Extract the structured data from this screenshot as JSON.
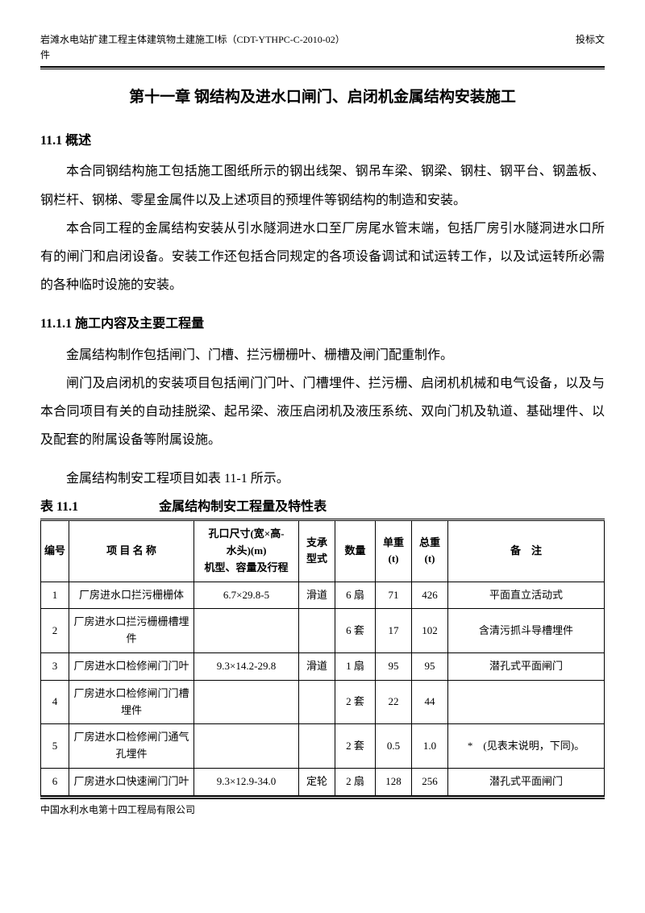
{
  "header": {
    "left_line1": "岩滩水电站扩建工程主体建筑物土建施工Ⅰ标（CDT-YTHPC-C-2010-02）",
    "left_line2": "件",
    "right": "投标文"
  },
  "chapter_title": "第十一章 钢结构及进水口闸门、启闭机金属结构安装施工",
  "section1": {
    "heading": "11.1 概述",
    "para1": "本合同钢结构施工包括施工图纸所示的钢出线架、钢吊车梁、钢梁、钢柱、钢平台、钢盖板、钢栏杆、钢梯、零星金属件以及上述项目的预埋件等钢结构的制造和安装。",
    "para2": "本合同工程的金属结构安装从引水隧洞进水口至厂房尾水管末端，包括厂房引水隧洞进水口所有的闸门和启闭设备。安装工作还包括合同规定的各项设备调试和试运转工作，以及试运转所必需的各种临时设施的安装。"
  },
  "section2": {
    "heading": "11.1.1 施工内容及主要工程量",
    "para1": "金属结构制作包括闸门、门槽、拦污栅栅叶、栅槽及闸门配重制作。",
    "para2": "闸门及启闭机的安装项目包括闸门门叶、门槽埋件、拦污栅、启闭机机械和电气设备，以及与本合同项目有关的自动挂脱梁、起吊梁、液压启闭机及液压系统、双向门机及轨道、基础埋件、以及配套的附属设备等附属设施。",
    "table_intro": "金属结构制安工程项目如表 11-1 所示。"
  },
  "table": {
    "caption_number": "表 11.1",
    "caption_title": "金属结构制安工程量及特性表",
    "headers": {
      "num": "编号",
      "name": "项 目 名 称",
      "size": "孔口尺寸(宽×高-水头)(m)\n机型、容量及行程",
      "support": "支承型式",
      "qty": "数量",
      "unit_weight": "单重(t)",
      "total_weight": "总重(t)",
      "note": "备　注"
    },
    "rows": [
      {
        "num": "1",
        "name": "厂房进水口拦污栅栅体",
        "size": "6.7×29.8-5",
        "support": "滑道",
        "qty": "6 扇",
        "unit": "71",
        "total": "426",
        "note": "平面直立活动式"
      },
      {
        "num": "2",
        "name": "厂房进水口拦污栅栅槽埋件",
        "size": "",
        "support": "",
        "qty": "6 套",
        "unit": "17",
        "total": "102",
        "note": "含清污抓斗导槽埋件"
      },
      {
        "num": "3",
        "name": "厂房进水口检修闸门门叶",
        "size": "9.3×14.2-29.8",
        "support": "滑道",
        "qty": "1 扇",
        "unit": "95",
        "total": "95",
        "note": "潜孔式平面闸门"
      },
      {
        "num": "4",
        "name": "厂房进水口检修闸门门槽埋件",
        "size": "",
        "support": "",
        "qty": "2 套",
        "unit": "22",
        "total": "44",
        "note": ""
      },
      {
        "num": "5",
        "name": "厂房进水口检修闸门通气孔埋件",
        "size": "",
        "support": "",
        "qty": "2 套",
        "unit": "0.5",
        "total": "1.0",
        "note": "*　(见表末说明，下同)。"
      },
      {
        "num": "6",
        "name": "厂房进水口快速闸门门叶",
        "size": "9.3×12.9-34.0",
        "support": "定轮",
        "qty": "2 扇",
        "unit": "128",
        "total": "256",
        "note": "潜孔式平面闸门"
      }
    ]
  },
  "footer": "中国水利水电第十四工程局有限公司"
}
